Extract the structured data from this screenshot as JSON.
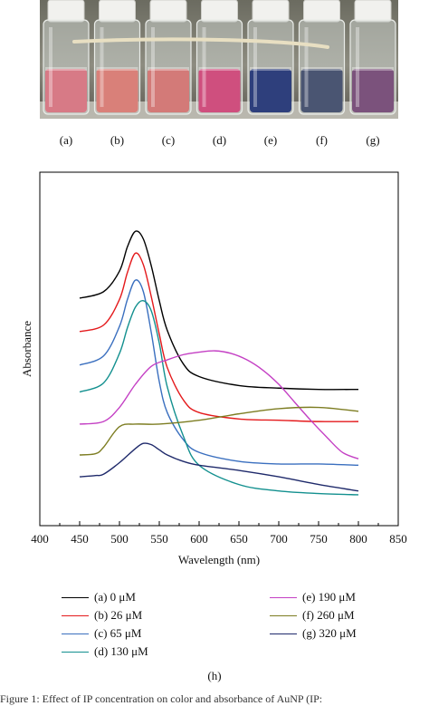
{
  "photo": {
    "vials": [
      {
        "label": "(a)",
        "color": "#d77a86"
      },
      {
        "label": "(b)",
        "color": "#d98079"
      },
      {
        "label": "(c)",
        "color": "#d37a78"
      },
      {
        "label": "(d)",
        "color": "#cf4f7e"
      },
      {
        "label": "(e)",
        "color": "#2e3f7c"
      },
      {
        "label": "(f)",
        "color": "#4a5572"
      },
      {
        "label": "(g)",
        "color": "#7b527c"
      }
    ]
  },
  "chart_data": {
    "type": "line",
    "xlabel": "Wavelength (nm)",
    "ylabel": "Absorbance",
    "xlim": [
      400,
      850
    ],
    "xticks": [
      400,
      450,
      500,
      550,
      600,
      650,
      700,
      750,
      800,
      850
    ],
    "y_ticks_labeled": false,
    "grid": false,
    "legend_position": "below",
    "series": [
      {
        "name": "(a) 0 μM",
        "color": "#000000",
        "x": [
          450,
          480,
          500,
          510,
          520,
          530,
          540,
          550,
          560,
          580,
          600,
          650,
          700,
          750,
          800
        ],
        "y": [
          1.57,
          1.62,
          1.78,
          1.97,
          2.09,
          2.03,
          1.82,
          1.55,
          1.32,
          1.06,
          0.96,
          0.89,
          0.87,
          0.86,
          0.86
        ]
      },
      {
        "name": "(b) 26 μM",
        "color": "#e41a1c",
        "x": [
          450,
          480,
          500,
          510,
          520,
          530,
          540,
          550,
          560,
          580,
          600,
          650,
          700,
          750,
          800
        ],
        "y": [
          1.31,
          1.36,
          1.56,
          1.77,
          1.92,
          1.83,
          1.58,
          1.29,
          1.03,
          0.78,
          0.68,
          0.63,
          0.62,
          0.61,
          0.61
        ]
      },
      {
        "name": "(c) 65 μM",
        "color": "#3a6fbf",
        "x": [
          450,
          480,
          500,
          510,
          520,
          530,
          540,
          550,
          560,
          580,
          600,
          650,
          700,
          750,
          800
        ],
        "y": [
          1.05,
          1.12,
          1.35,
          1.56,
          1.71,
          1.62,
          1.3,
          0.92,
          0.68,
          0.47,
          0.37,
          0.3,
          0.28,
          0.28,
          0.27
        ]
      },
      {
        "name": "(d) 130 μM",
        "color": "#13908f",
        "x": [
          450,
          480,
          500,
          510,
          520,
          530,
          540,
          550,
          560,
          580,
          600,
          650,
          700,
          750,
          800
        ],
        "y": [
          0.84,
          0.91,
          1.14,
          1.34,
          1.5,
          1.55,
          1.47,
          1.22,
          0.88,
          0.5,
          0.27,
          0.12,
          0.07,
          0.05,
          0.04
        ]
      },
      {
        "name": "(e) 190 μM",
        "color": "#c440c4",
        "x": [
          450,
          480,
          500,
          520,
          540,
          560,
          580,
          600,
          620,
          640,
          660,
          680,
          700,
          720,
          740,
          760,
          780,
          800
        ],
        "y": [
          0.59,
          0.61,
          0.72,
          0.9,
          1.04,
          1.09,
          1.13,
          1.15,
          1.16,
          1.14,
          1.09,
          1.01,
          0.9,
          0.76,
          0.62,
          0.49,
          0.37,
          0.32
        ]
      },
      {
        "name": "(f) 260 μM",
        "color": "#7d7d22",
        "x": [
          450,
          470,
          480,
          500,
          520,
          550,
          600,
          650,
          700,
          750,
          800
        ],
        "y": [
          0.35,
          0.36,
          0.41,
          0.57,
          0.59,
          0.59,
          0.62,
          0.67,
          0.71,
          0.72,
          0.69
        ]
      },
      {
        "name": "(g) 320 μM",
        "color": "#1f2a6b",
        "x": [
          450,
          470,
          480,
          500,
          520,
          530,
          540,
          550,
          560,
          580,
          600,
          650,
          700,
          750,
          800
        ],
        "y": [
          0.18,
          0.19,
          0.2,
          0.29,
          0.4,
          0.44,
          0.43,
          0.39,
          0.35,
          0.3,
          0.27,
          0.23,
          0.18,
          0.12,
          0.07
        ]
      }
    ]
  },
  "panel_label": "(h)",
  "caption": "Figure 1: Effect of IP concentration on color and absorbance of AuNP (IP:"
}
